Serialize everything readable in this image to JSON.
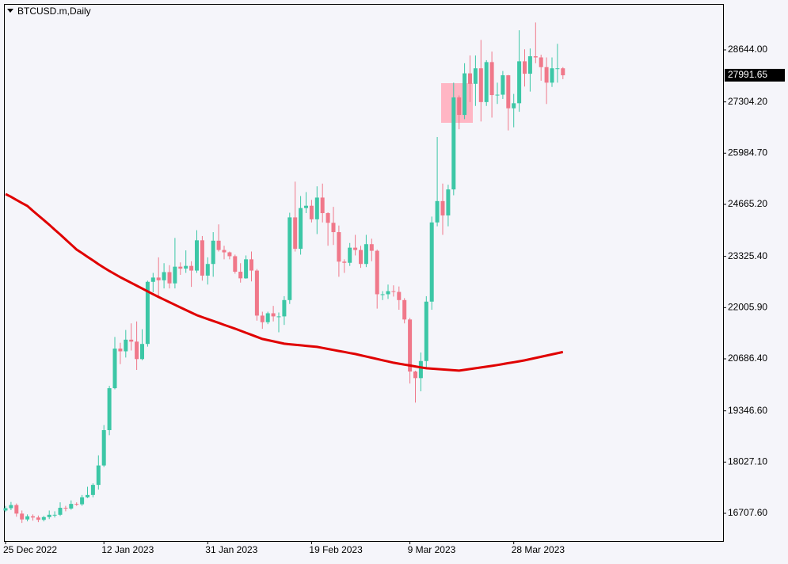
{
  "chart_data": {
    "type": "candlestick",
    "title": "BTCUSD.m,Daily",
    "up_color": "#3cc7a6",
    "down_color": "#f0788a",
    "categories": [
      "25 Dec 2022",
      null,
      null,
      null,
      null,
      null,
      null,
      null,
      null,
      null,
      null,
      null,
      null,
      null,
      null,
      null,
      null,
      null,
      "12 Jan 2023",
      null,
      null,
      null,
      null,
      null,
      null,
      null,
      null,
      null,
      null,
      null,
      null,
      null,
      null,
      null,
      null,
      null,
      null,
      "31 Jan 2023",
      null,
      null,
      null,
      null,
      null,
      null,
      null,
      null,
      null,
      null,
      null,
      null,
      null,
      null,
      null,
      null,
      null,
      null,
      "19 Feb 2023",
      null,
      null,
      null,
      null,
      null,
      null,
      null,
      null,
      null,
      null,
      null,
      null,
      null,
      null,
      null,
      null,
      null,
      "9 Mar 2023",
      null,
      null,
      null,
      null,
      null,
      null,
      null,
      null,
      null,
      null,
      null,
      null,
      null,
      null,
      null,
      null,
      null,
      null,
      "28 Mar 2023",
      null,
      null,
      null,
      null,
      null,
      null,
      null,
      null,
      null
    ],
    "open": [
      16780,
      16840,
      16920,
      16700,
      16550,
      16630,
      16600,
      16540,
      16610,
      16670,
      16670,
      16850,
      16830,
      16950,
      16940,
      17120,
      17180,
      17440,
      17940,
      18850,
      19930,
      20950,
      20880,
      21180,
      21130,
      20680,
      21070,
      22670,
      22780,
      22710,
      22920,
      22630,
      23060,
      23010,
      23080,
      22960,
      23740,
      22830,
      23130,
      23730,
      23490,
      23430,
      23330,
      22930,
      22760,
      23250,
      22960,
      21800,
      21630,
      21860,
      21780,
      21780,
      22200,
      24330,
      23520,
      24570,
      24630,
      24280,
      24840,
      24440,
      24190,
      23950,
      23190,
      23160,
      23550,
      23490,
      23130,
      23640,
      23470,
      22350,
      22350,
      22430,
      22410,
      22200,
      21700,
      20360,
      20190,
      20630,
      22160,
      24200,
      24750,
      24380,
      25050,
      27420,
      26970,
      28040,
      27770,
      28170,
      27300,
      28330,
      27480,
      27490,
      27990,
      27140,
      27270,
      28350,
      28030,
      28480,
      28450,
      28200,
      27800,
      28170,
      28170
    ],
    "high": [
      16900,
      17000,
      16960,
      16780,
      16680,
      16680,
      16650,
      16640,
      16780,
      16760,
      16990,
      16900,
      17040,
      16990,
      17180,
      17390,
      17480,
      18200,
      18980,
      19990,
      21250,
      21100,
      21430,
      21600,
      21650,
      21450,
      22700,
      22900,
      23300,
      23150,
      23100,
      23800,
      23170,
      23480,
      23200,
      24000,
      23850,
      23300,
      23950,
      24150,
      23600,
      23450,
      23370,
      23150,
      23350,
      23450,
      23000,
      21900,
      21900,
      22050,
      21880,
      22300,
      24450,
      25250,
      24880,
      24980,
      24780,
      25130,
      25200,
      24460,
      24600,
      24120,
      23250,
      23670,
      23880,
      23600,
      23880,
      23780,
      23500,
      22430,
      22600,
      22580,
      22550,
      22250,
      21740,
      20380,
      20850,
      22300,
      24350,
      26400,
      25200,
      25170,
      27800,
      27470,
      28300,
      28500,
      28500,
      28900,
      28380,
      28600,
      27800,
      28100,
      28000,
      27510,
      29150,
      28660,
      28680,
      29350,
      28520,
      28450,
      28450,
      28800,
      28200
    ],
    "low": [
      16740,
      16790,
      16620,
      16460,
      16500,
      16520,
      16480,
      16500,
      16560,
      16600,
      16640,
      16760,
      16800,
      16900,
      16900,
      17100,
      17120,
      17320,
      17900,
      18720,
      19900,
      20550,
      20720,
      20900,
      20400,
      20650,
      21000,
      22400,
      22300,
      22500,
      22500,
      22500,
      22850,
      22900,
      22540,
      22900,
      22700,
      22600,
      22800,
      23450,
      23250,
      23250,
      22880,
      22650,
      22750,
      22680,
      21670,
      21460,
      21580,
      21650,
      21370,
      21560,
      22100,
      23450,
      23370,
      24440,
      24200,
      23900,
      24200,
      23600,
      23620,
      22800,
      22900,
      23080,
      23350,
      23030,
      23050,
      23200,
      21980,
      22200,
      22230,
      22290,
      21950,
      21600,
      20050,
      19560,
      19850,
      20450,
      21950,
      24100,
      23880,
      24100,
      24900,
      26600,
      26860,
      27300,
      27200,
      26800,
      27200,
      26900,
      27250,
      27380,
      26570,
      26650,
      27050,
      27700,
      27570,
      28300,
      27850,
      27250,
      27690,
      27800,
      27890
    ],
    "close": [
      16840,
      16920,
      16700,
      16550,
      16630,
      16600,
      16540,
      16610,
      16670,
      16670,
      16850,
      16830,
      16950,
      16940,
      17120,
      17180,
      17440,
      17940,
      18850,
      19930,
      20950,
      20880,
      21180,
      21130,
      20680,
      21070,
      22670,
      22780,
      22710,
      22920,
      22630,
      23060,
      23010,
      23080,
      22960,
      23740,
      22830,
      23130,
      23730,
      23490,
      23430,
      23330,
      22930,
      22760,
      23250,
      22960,
      21800,
      21630,
      21860,
      21780,
      21780,
      22200,
      24330,
      23520,
      24570,
      24630,
      24280,
      24840,
      24440,
      24190,
      23950,
      23190,
      23160,
      23550,
      23490,
      23130,
      23640,
      23470,
      22350,
      22350,
      22430,
      22410,
      22200,
      21700,
      20360,
      20190,
      20630,
      22160,
      24200,
      24750,
      24380,
      25050,
      27420,
      26970,
      28040,
      27770,
      28170,
      27300,
      28330,
      27480,
      27490,
      27990,
      27140,
      27270,
      28350,
      28030,
      28480,
      28450,
      28200,
      27800,
      28170,
      28170,
      27990
    ],
    "moving_average": {
      "color": "#e00000",
      "values": [
        24930,
        24860,
        24780,
        24700,
        24625,
        24500,
        24380,
        24260,
        24140,
        24013,
        23890,
        23760,
        23630,
        23503,
        23410,
        23315,
        23220,
        23125,
        23034,
        22950,
        22870,
        22790,
        22717,
        22644,
        22571,
        22498,
        22425,
        22352,
        22279,
        22212,
        22145,
        22078,
        22011,
        21944,
        21877,
        21810,
        21760,
        21711,
        21661,
        21612,
        21562,
        21513,
        21463,
        21410,
        21357,
        21304,
        21251,
        21198,
        21168,
        21137,
        21107,
        21076,
        21062,
        21049,
        21035,
        21021,
        21008,
        20994,
        20968,
        20942,
        20915,
        20889,
        20863,
        20836,
        20810,
        20778,
        20746,
        20714,
        20682,
        20650,
        20618,
        20586,
        20562,
        20538,
        20515,
        20491,
        20467,
        20443,
        20433,
        20423,
        20413,
        20402,
        20392,
        20382,
        20402,
        20423,
        20443,
        20463,
        20484,
        20504,
        20528,
        20552,
        20576,
        20599,
        20623,
        20647,
        20678,
        20708,
        20739,
        20770,
        20800,
        20831,
        20862
      ]
    },
    "last_price": 27991.65,
    "ylim": [
      15993.6,
      29827
    ],
    "yticks": [
      {
        "value": 28644,
        "label": "28644.00"
      },
      {
        "value": 27304.2,
        "label": "27304.20"
      },
      {
        "value": 25984.7,
        "label": "25984.70"
      },
      {
        "value": 24665.2,
        "label": "24665.20"
      },
      {
        "value": 23325.4,
        "label": "23325.40"
      },
      {
        "value": 22005.9,
        "label": "22005.90"
      },
      {
        "value": 20686.4,
        "label": "20686.40"
      },
      {
        "value": 19346.6,
        "label": "19346.60"
      },
      {
        "value": 18027.1,
        "label": "18027.10"
      },
      {
        "value": 16707.6,
        "label": "16707.60"
      }
    ]
  }
}
